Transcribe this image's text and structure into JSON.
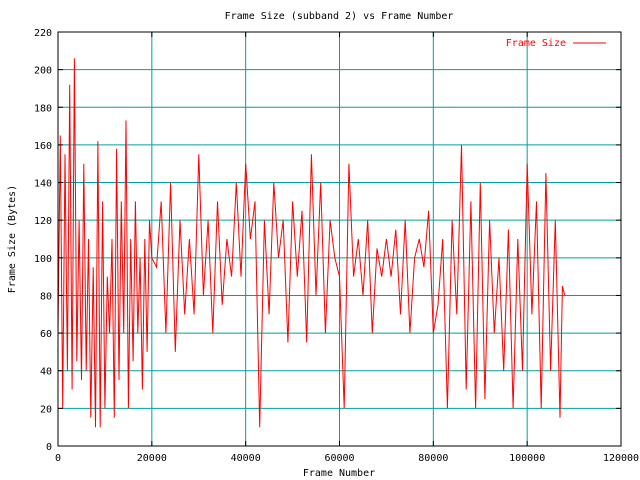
{
  "chart_data": {
    "type": "line",
    "title": "Frame Size (subband 2) vs Frame Number",
    "xlabel": "Frame Number",
    "ylabel": "Frame Size (Bytes)",
    "xlim": [
      0,
      120000
    ],
    "ylim": [
      0,
      220
    ],
    "xticks": [
      0,
      20000,
      40000,
      60000,
      80000,
      100000,
      120000
    ],
    "yticks": [
      0,
      20,
      40,
      60,
      80,
      100,
      120,
      140,
      160,
      180,
      200,
      220
    ],
    "grid": true,
    "legend_position": "top-right",
    "colors": {
      "series": "#ff0000",
      "grid": "#00a0a0",
      "axes": "#000000"
    },
    "series": [
      {
        "name": "Frame Size",
        "x": [
          0,
          500,
          1000,
          1500,
          2000,
          2500,
          3000,
          3500,
          4000,
          4500,
          5000,
          5500,
          6000,
          6500,
          7000,
          7500,
          8000,
          8500,
          9000,
          9500,
          10000,
          10500,
          11000,
          11500,
          12000,
          12500,
          13000,
          13500,
          14000,
          14500,
          15000,
          15500,
          16000,
          16500,
          17000,
          17500,
          18000,
          18500,
          19000,
          19500,
          20000,
          21000,
          22000,
          23000,
          24000,
          25000,
          26000,
          27000,
          28000,
          29000,
          30000,
          31000,
          32000,
          33000,
          34000,
          35000,
          36000,
          37000,
          38000,
          39000,
          40000,
          41000,
          42000,
          43000,
          44000,
          45000,
          46000,
          47000,
          48000,
          49000,
          50000,
          51000,
          52000,
          53000,
          54000,
          55000,
          56000,
          57000,
          58000,
          59000,
          60000,
          61000,
          62000,
          63000,
          64000,
          65000,
          66000,
          67000,
          68000,
          69000,
          70000,
          71000,
          72000,
          73000,
          74000,
          75000,
          76000,
          77000,
          78000,
          79000,
          80000,
          81000,
          82000,
          83000,
          84000,
          85000,
          86000,
          87000,
          88000,
          89000,
          90000,
          91000,
          92000,
          93000,
          94000,
          95000,
          96000,
          97000,
          98000,
          99000,
          100000,
          101000,
          102000,
          103000,
          104000,
          105000,
          106000,
          107000,
          107500,
          108000
        ],
        "y": [
          60,
          165,
          20,
          155,
          40,
          192,
          30,
          206,
          45,
          120,
          35,
          150,
          40,
          110,
          15,
          95,
          10,
          162,
          10,
          130,
          20,
          90,
          60,
          110,
          15,
          158,
          35,
          130,
          60,
          173,
          20,
          110,
          45,
          130,
          60,
          100,
          30,
          110,
          50,
          120,
          100,
          95,
          130,
          60,
          140,
          50,
          120,
          70,
          110,
          70,
          155,
          80,
          120,
          60,
          130,
          75,
          110,
          90,
          140,
          90,
          150,
          110,
          130,
          10,
          120,
          70,
          140,
          100,
          120,
          55,
          130,
          90,
          125,
          55,
          155,
          80,
          140,
          60,
          120,
          100,
          90,
          20,
          150,
          90,
          110,
          80,
          120,
          60,
          105,
          90,
          110,
          90,
          115,
          70,
          120,
          60,
          100,
          110,
          95,
          125,
          60,
          75,
          110,
          20,
          120,
          70,
          160,
          30,
          130,
          20,
          140,
          25,
          120,
          60,
          100,
          40,
          115,
          20,
          110,
          40,
          150,
          70,
          130,
          20,
          145,
          40,
          120,
          15,
          85,
          80
        ]
      }
    ]
  }
}
